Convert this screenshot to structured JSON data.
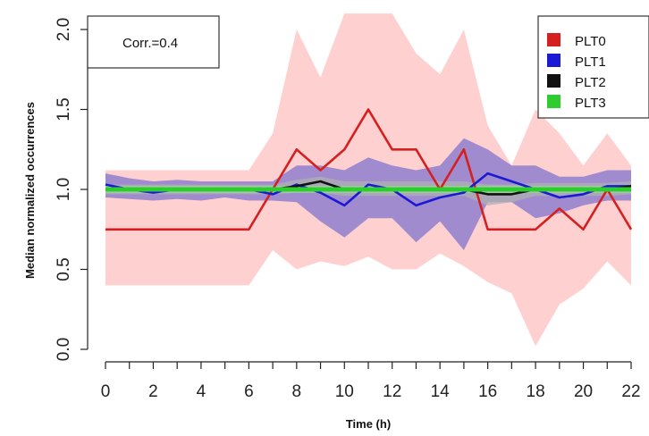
{
  "chart_data": {
    "type": "line",
    "xlabel": "Time (h)",
    "ylabel": "Median normalized occurrences",
    "xlim": [
      0,
      22
    ],
    "ylim": [
      0,
      2
    ],
    "x_ticks": [
      "0",
      "2",
      "4",
      "6",
      "8",
      "10",
      "12",
      "14",
      "16",
      "18",
      "20",
      "22"
    ],
    "y_ticks": [
      "0.0",
      "0.5",
      "1.0",
      "1.5",
      "2.0"
    ],
    "annotation": "Corr.=0.4",
    "legend_position": "top-right",
    "x": [
      0,
      1,
      2,
      3,
      4,
      5,
      6,
      7,
      8,
      9,
      10,
      11,
      12,
      13,
      14,
      15,
      16,
      17,
      18,
      19,
      20,
      21,
      22
    ],
    "series": [
      {
        "name": "PLT0",
        "color": "#d42020",
        "band_color": "#ffc8c8",
        "values": [
          0.75,
          0.75,
          0.75,
          0.75,
          0.75,
          0.75,
          0.75,
          1.0,
          1.25,
          1.12,
          1.25,
          1.5,
          1.25,
          1.25,
          1.0,
          1.25,
          0.75,
          0.75,
          0.75,
          0.88,
          0.75,
          1.0,
          0.75
        ],
        "lower": [
          0.4,
          0.4,
          0.4,
          0.4,
          0.4,
          0.4,
          0.4,
          0.62,
          0.5,
          0.55,
          0.52,
          0.58,
          0.5,
          0.5,
          0.6,
          0.52,
          0.42,
          0.35,
          0.02,
          0.28,
          0.38,
          0.55,
          0.4
        ],
        "upper": [
          1.12,
          1.12,
          1.12,
          1.12,
          1.12,
          1.12,
          1.12,
          1.35,
          2.0,
          1.7,
          2.1,
          2.1,
          2.1,
          1.85,
          1.72,
          2.0,
          1.4,
          1.15,
          1.5,
          1.35,
          1.15,
          1.35,
          1.15
        ]
      },
      {
        "name": "PLT1",
        "color": "#1a1ad4",
        "band_color": "#8f7fcf",
        "values": [
          1.03,
          1.0,
          0.98,
          1.0,
          1.0,
          1.0,
          1.0,
          0.97,
          1.03,
          0.98,
          0.9,
          1.03,
          1.0,
          0.9,
          0.95,
          0.98,
          1.1,
          1.05,
          1.0,
          0.95,
          0.97,
          1.02,
          1.02
        ],
        "lower": [
          0.95,
          0.94,
          0.93,
          0.94,
          0.93,
          0.95,
          0.93,
          0.93,
          0.92,
          0.8,
          0.7,
          0.82,
          0.82,
          0.67,
          0.8,
          0.62,
          0.92,
          0.92,
          0.82,
          0.85,
          0.9,
          0.93,
          0.93
        ],
        "upper": [
          1.1,
          1.07,
          1.05,
          1.06,
          1.05,
          1.05,
          1.05,
          1.05,
          1.15,
          1.15,
          1.12,
          1.2,
          1.15,
          1.12,
          1.15,
          1.32,
          1.25,
          1.15,
          1.15,
          1.08,
          1.08,
          1.12,
          1.12
        ]
      },
      {
        "name": "PLT2",
        "color": "#111111",
        "band_color": "#b0b0b0",
        "values": [
          1.0,
          1.0,
          1.0,
          1.0,
          1.0,
          1.0,
          1.0,
          1.0,
          1.02,
          1.05,
          1.0,
          1.0,
          1.0,
          1.0,
          1.0,
          1.0,
          0.97,
          0.97,
          1.0,
          1.0,
          1.0,
          1.0,
          1.02
        ],
        "lower": [
          0.97,
          0.97,
          0.97,
          0.97,
          0.97,
          0.97,
          0.97,
          0.97,
          0.98,
          0.98,
          0.96,
          0.96,
          0.96,
          0.96,
          0.96,
          0.96,
          0.9,
          0.92,
          0.96,
          0.96,
          0.96,
          0.96,
          0.97
        ],
        "upper": [
          1.03,
          1.03,
          1.03,
          1.03,
          1.03,
          1.03,
          1.03,
          1.03,
          1.06,
          1.08,
          1.05,
          1.05,
          1.05,
          1.05,
          1.05,
          1.05,
          1.03,
          1.03,
          1.04,
          1.04,
          1.04,
          1.04,
          1.05
        ]
      },
      {
        "name": "PLT3",
        "color": "#2ecc2e",
        "band_color": "#9fe59f",
        "values": [
          1.0,
          1.0,
          1.0,
          1.0,
          1.0,
          1.0,
          1.0,
          1.0,
          1.0,
          1.0,
          1.0,
          1.0,
          1.0,
          1.0,
          1.0,
          1.0,
          1.0,
          1.0,
          1.0,
          1.0,
          1.0,
          1.0,
          1.0
        ],
        "lower": [
          0.98,
          0.98,
          0.98,
          0.98,
          0.98,
          0.98,
          0.98,
          0.98,
          0.98,
          0.98,
          0.98,
          0.98,
          0.98,
          0.98,
          0.98,
          0.98,
          0.98,
          0.98,
          0.98,
          0.98,
          0.98,
          0.98,
          0.98
        ],
        "upper": [
          1.02,
          1.02,
          1.02,
          1.02,
          1.02,
          1.02,
          1.02,
          1.02,
          1.02,
          1.02,
          1.02,
          1.02,
          1.02,
          1.02,
          1.02,
          1.02,
          1.02,
          1.02,
          1.02,
          1.02,
          1.02,
          1.02,
          1.02
        ]
      }
    ]
  }
}
